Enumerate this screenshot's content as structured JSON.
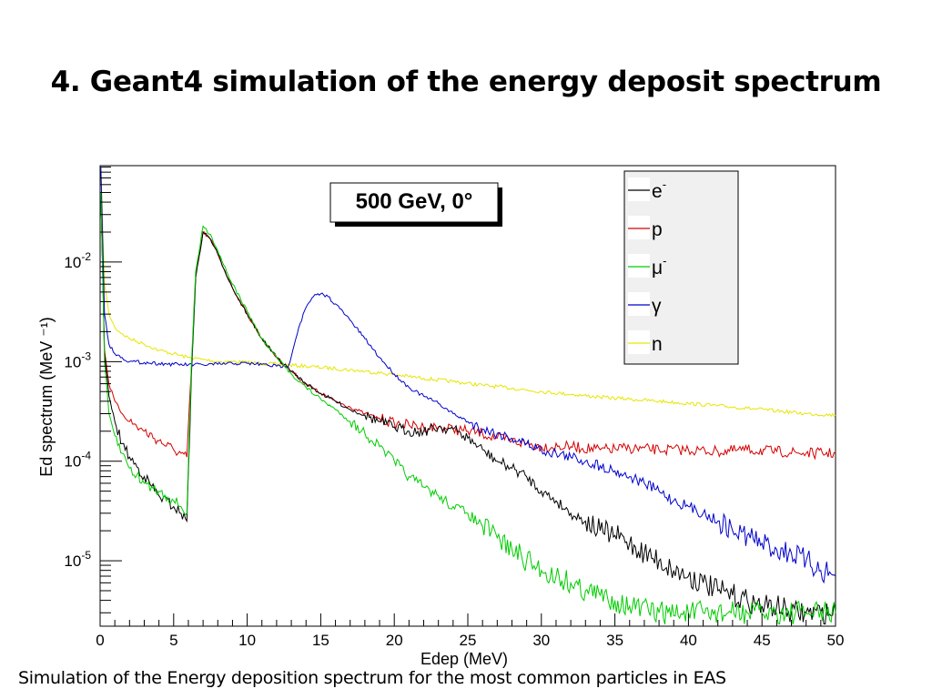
{
  "slide": {
    "title": "4. Geant4 simulation of the energy deposit spectrum",
    "caption": "Simulation of the Energy deposition spectrum for the most common particles in EAS"
  },
  "chart_data": {
    "type": "line",
    "annotation": "500 GeV, 0°",
    "xlabel": "Edep (MeV)",
    "ylabel": "Ed spectrum (MeV ⁻¹)",
    "x_ticks": [
      0,
      5,
      10,
      15,
      20,
      25,
      30,
      35,
      40,
      45,
      50
    ],
    "y_ticks": [
      {
        "base": "10",
        "exp": "-2",
        "value": 0.01
      },
      {
        "base": "10",
        "exp": "-3",
        "value": 0.001
      },
      {
        "base": "10",
        "exp": "-4",
        "value": 0.0001
      },
      {
        "base": "10",
        "exp": "-5",
        "value": 1e-05
      }
    ],
    "xlim": [
      0,
      50
    ],
    "ylim": [
      2.2e-06,
      0.093
    ],
    "y_scale": "log",
    "grid": false,
    "legend_position": "top-right",
    "series": [
      {
        "name": "e",
        "sup": "-",
        "color": "#000000",
        "x": [
          0.05,
          0.3,
          0.6,
          1,
          1.5,
          2,
          3,
          4,
          5,
          5.5,
          5.9,
          6.2,
          6.5,
          7,
          7.5,
          8,
          9,
          10,
          11,
          12,
          13,
          14,
          15,
          16,
          17,
          18,
          19,
          20,
          21,
          22,
          23,
          24,
          25,
          26,
          27,
          28,
          29,
          30,
          31,
          32,
          33,
          34,
          35,
          36,
          37,
          38,
          39,
          40,
          41,
          42,
          43,
          44,
          45,
          46,
          47,
          48,
          49,
          50
        ],
        "y": [
          0.05,
          0.0012,
          0.00045,
          0.00025,
          0.00015,
          0.00011,
          7e-05,
          4.5e-05,
          3.5e-05,
          3e-05,
          2.5e-05,
          0.0007,
          0.007,
          0.02,
          0.017,
          0.012,
          0.0055,
          0.003,
          0.0017,
          0.0011,
          0.0008,
          0.0006,
          0.00048,
          0.0004,
          0.00033,
          0.00029,
          0.00025,
          0.00022,
          0.0002,
          0.0002,
          0.00022,
          0.00021,
          0.00017,
          0.00013,
          0.0001,
          8.5e-05,
          7e-05,
          5e-05,
          4e-05,
          3e-05,
          2.5e-05,
          2e-05,
          1.8e-05,
          1.5e-05,
          1.2e-05,
          1e-05,
          8e-06,
          7e-06,
          6e-06,
          5e-06,
          4.5e-06,
          4e-06,
          3.5e-06,
          3.5e-06,
          3e-06,
          3e-06,
          3e-06,
          3e-06
        ]
      },
      {
        "name": "p",
        "sup": "",
        "color": "#d40000",
        "x": [
          0.05,
          0.3,
          0.6,
          1,
          1.5,
          2,
          3,
          4,
          5,
          5.5,
          5.9,
          6.2,
          6.5,
          7,
          7.5,
          8,
          9,
          10,
          11,
          12,
          13,
          14,
          15,
          16,
          17,
          18,
          19,
          20,
          21,
          22,
          23,
          24,
          25,
          26,
          27,
          28,
          29,
          30,
          32,
          34,
          36,
          38,
          40,
          42,
          44,
          46,
          48,
          50
        ],
        "y": [
          0.05,
          0.0013,
          0.0006,
          0.0004,
          0.0003,
          0.00025,
          0.0002,
          0.00016,
          0.00013,
          0.00012,
          0.00011,
          0.0008,
          0.007,
          0.02,
          0.017,
          0.012,
          0.0055,
          0.003,
          0.0017,
          0.0011,
          0.0008,
          0.0006,
          0.00048,
          0.0004,
          0.00035,
          0.0003,
          0.00027,
          0.00024,
          0.00023,
          0.00022,
          0.00022,
          0.00021,
          0.0002,
          0.00019,
          0.00017,
          0.00016,
          0.00015,
          0.00014,
          0.00014,
          0.00013,
          0.000135,
          0.00013,
          0.00013,
          0.000125,
          0.00013,
          0.000125,
          0.00012,
          0.00012
        ]
      },
      {
        "name": "μ",
        "sup": "-",
        "color": "#00cc00",
        "x": [
          0.05,
          0.3,
          0.6,
          1,
          1.5,
          2,
          3,
          4,
          5,
          5.5,
          5.9,
          6.2,
          6.5,
          7,
          7.5,
          8,
          9,
          10,
          11,
          12,
          13,
          14,
          15,
          16,
          17,
          18,
          19,
          20,
          21,
          22,
          23,
          24,
          25,
          26,
          27,
          28,
          29,
          30,
          31,
          32,
          33,
          34,
          35,
          36,
          38,
          40,
          42,
          44,
          46,
          48,
          50
        ],
        "y": [
          0.05,
          0.001,
          0.0003,
          0.00018,
          0.00012,
          8.5e-05,
          6e-05,
          5e-05,
          4e-05,
          3.5e-05,
          3e-05,
          0.0009,
          0.008,
          0.023,
          0.019,
          0.013,
          0.006,
          0.0032,
          0.0017,
          0.0011,
          0.00075,
          0.00055,
          0.00042,
          0.00033,
          0.00025,
          0.00019,
          0.00014,
          0.0001,
          7e-05,
          5.5e-05,
          4.5e-05,
          3.5e-05,
          3e-05,
          2.2e-05,
          1.7e-05,
          1.3e-05,
          1e-05,
          8e-06,
          7e-06,
          6e-06,
          5e-06,
          4.5e-06,
          4e-06,
          3.5e-06,
          3e-06,
          3e-06,
          3e-06,
          3e-06,
          3e-06,
          3e-06,
          3e-06
        ]
      },
      {
        "name": "γ",
        "sup": "",
        "color": "#0000cc",
        "x": [
          0.05,
          0.3,
          0.6,
          1,
          1.5,
          2,
          3,
          4,
          5,
          6,
          7,
          8,
          9,
          10,
          11,
          12,
          12.8,
          13.5,
          14,
          14.5,
          15,
          15.5,
          16,
          17,
          18,
          19,
          20,
          21,
          22,
          23,
          24,
          25,
          26,
          27,
          28,
          29,
          30,
          31,
          32,
          33,
          34,
          35,
          36,
          37,
          38,
          39,
          40,
          41,
          42,
          43,
          44,
          45,
          46,
          47,
          48,
          49,
          50
        ],
        "y": [
          0.09,
          0.003,
          0.0015,
          0.0012,
          0.0011,
          0.001,
          0.00098,
          0.00096,
          0.00094,
          0.00093,
          0.00093,
          0.00094,
          0.00096,
          0.00096,
          0.00094,
          0.0009,
          0.0009,
          0.0022,
          0.0035,
          0.0045,
          0.0048,
          0.0045,
          0.0038,
          0.0026,
          0.0017,
          0.0011,
          0.00075,
          0.00055,
          0.00045,
          0.00038,
          0.0003,
          0.00025,
          0.00021,
          0.00019,
          0.00017,
          0.00015,
          0.00013,
          0.00012,
          0.00011,
          0.0001,
          9e-05,
          8e-05,
          7e-05,
          6e-05,
          5e-05,
          4e-05,
          3.5e-05,
          3e-05,
          2.5e-05,
          2e-05,
          1.8e-05,
          1.5e-05,
          1.3e-05,
          1.2e-05,
          1e-05,
          8e-06,
          7e-06
        ]
      },
      {
        "name": "n",
        "sup": "",
        "color": "#e6e600",
        "x": [
          0.05,
          0.3,
          0.6,
          1,
          1.5,
          2,
          3,
          4,
          5,
          6,
          7,
          8,
          9,
          10,
          12,
          14,
          16,
          18,
          20,
          22,
          24,
          26,
          28,
          30,
          32,
          34,
          36,
          38,
          40,
          42,
          44,
          46,
          48,
          50
        ],
        "y": [
          0.09,
          0.006,
          0.003,
          0.0022,
          0.0019,
          0.0017,
          0.0015,
          0.0013,
          0.0012,
          0.0011,
          0.00105,
          0.001,
          0.001,
          0.00098,
          0.00094,
          0.0009,
          0.00085,
          0.0008,
          0.00074,
          0.00068,
          0.00063,
          0.00058,
          0.00054,
          0.0005,
          0.00047,
          0.00044,
          0.00042,
          0.0004,
          0.00038,
          0.00036,
          0.00034,
          0.00032,
          0.0003,
          0.00029
        ]
      }
    ]
  }
}
